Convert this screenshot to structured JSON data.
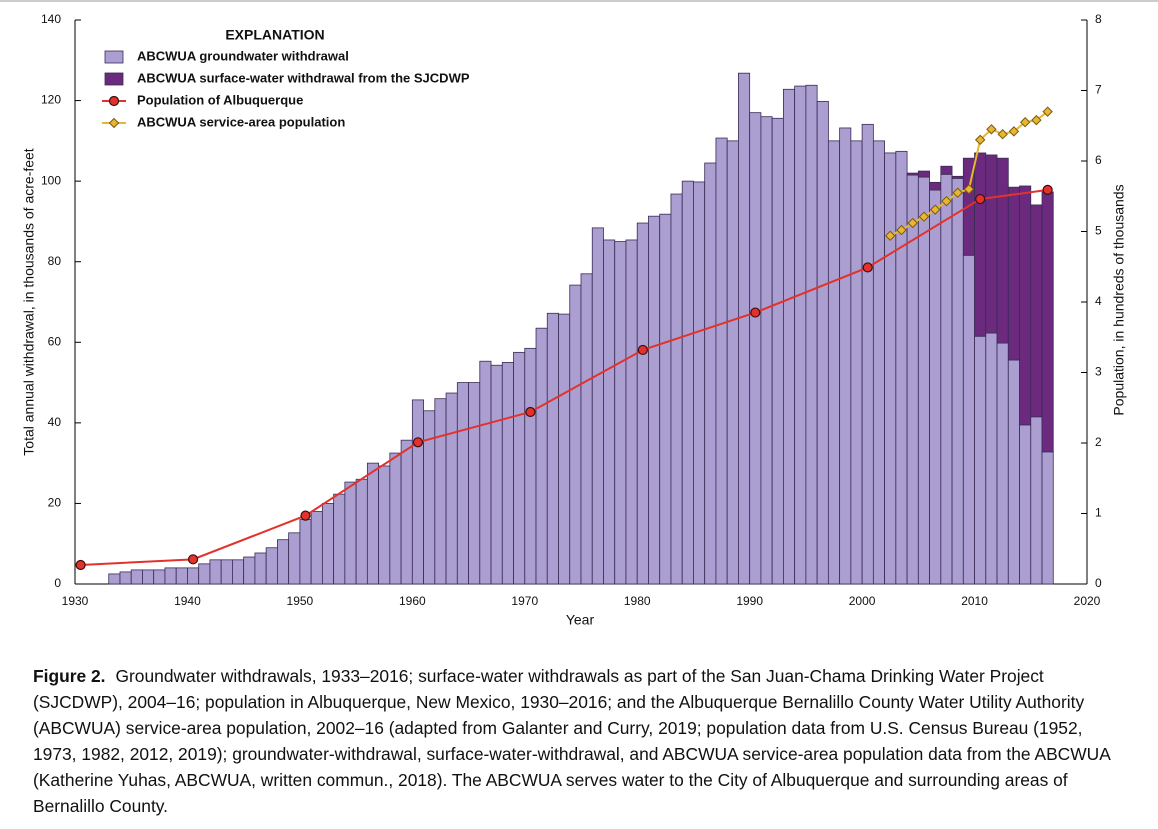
{
  "chart_data": {
    "type": "bar",
    "stacked": true,
    "legend_title": "EXPLANATION",
    "xlabel": "Year",
    "ylabel": "Total annual withdrawal, in thousands of acre-feet",
    "y2label": "Population, in hundreds of thousands",
    "xlim": [
      1930,
      2020
    ],
    "xticks": [
      1930,
      1940,
      1950,
      1960,
      1970,
      1980,
      1990,
      2000,
      2010,
      2020
    ],
    "ylim": [
      0,
      140
    ],
    "yticks": [
      0,
      20,
      40,
      60,
      80,
      100,
      120,
      140
    ],
    "y2lim": [
      0,
      8
    ],
    "y2ticks": [
      0,
      1,
      2,
      3,
      4,
      5,
      6,
      7,
      8
    ],
    "x": [
      1933,
      1934,
      1935,
      1936,
      1937,
      1938,
      1939,
      1940,
      1941,
      1942,
      1943,
      1944,
      1945,
      1946,
      1947,
      1948,
      1949,
      1950,
      1951,
      1952,
      1953,
      1954,
      1955,
      1956,
      1957,
      1958,
      1959,
      1960,
      1961,
      1962,
      1963,
      1964,
      1965,
      1966,
      1967,
      1968,
      1969,
      1970,
      1971,
      1972,
      1973,
      1974,
      1975,
      1976,
      1977,
      1978,
      1979,
      1980,
      1981,
      1982,
      1983,
      1984,
      1985,
      1986,
      1987,
      1988,
      1989,
      1990,
      1991,
      1992,
      1993,
      1994,
      1995,
      1996,
      1997,
      1998,
      1999,
      2000,
      2001,
      2002,
      2003,
      2004,
      2005,
      2006,
      2007,
      2008,
      2009,
      2010,
      2011,
      2012,
      2013,
      2014,
      2015,
      2016
    ],
    "series": [
      {
        "name": "ABCWUA groundwater withdrawal",
        "color": "#ab9fd1",
        "values": [
          2.5,
          3,
          3.5,
          3.5,
          3.5,
          4,
          4,
          4,
          5,
          6,
          6,
          6,
          6.7,
          7.7,
          9,
          11,
          12.7,
          16,
          18,
          20,
          22.3,
          25.3,
          26,
          30,
          29.3,
          32.5,
          35.7,
          45.7,
          43,
          46,
          47.4,
          50,
          50,
          55.3,
          54.3,
          55,
          57.5,
          58.5,
          63.5,
          67.2,
          67,
          74.2,
          77,
          88.4,
          85.4,
          85,
          85.4,
          89.6,
          91.3,
          91.8,
          96.8,
          100,
          99.8,
          104.5,
          110.7,
          110,
          126.8,
          117,
          116,
          115.6,
          122.8,
          123.6,
          123.8,
          119.8,
          110,
          113.2,
          110,
          114.1,
          110,
          107,
          107.4,
          101.5,
          101,
          97.8,
          101.7,
          100.7,
          81.6,
          61.5,
          62.3,
          59.8,
          55.6,
          39.5,
          41.5,
          32.8
        ]
      },
      {
        "name": "ABCWUA surface-water withdrawal from the SJCDWP",
        "color": "#6b2a7e",
        "values": [
          null,
          null,
          null,
          null,
          null,
          null,
          null,
          null,
          null,
          null,
          null,
          null,
          null,
          null,
          null,
          null,
          null,
          null,
          null,
          null,
          null,
          null,
          null,
          null,
          null,
          null,
          null,
          null,
          null,
          null,
          null,
          null,
          null,
          null,
          null,
          null,
          null,
          null,
          null,
          null,
          null,
          null,
          null,
          null,
          null,
          null,
          null,
          null,
          null,
          null,
          null,
          null,
          null,
          null,
          null,
          null,
          null,
          null,
          null,
          null,
          null,
          null,
          null,
          null,
          null,
          null,
          null,
          null,
          null,
          null,
          null,
          0.5,
          1.5,
          1.9,
          2,
          0.5,
          24.1,
          45.5,
          44.2,
          45.9,
          42.9,
          59.3,
          52.6,
          64.5
        ]
      },
      {
        "name": "Population of Albuquerque",
        "type": "line",
        "axis": "y2",
        "color": "#e2322b",
        "marker": "circle",
        "x": [
          1930,
          1940,
          1950,
          1960,
          1970,
          1980,
          1990,
          2000,
          2010,
          2016
        ],
        "values": [
          0.27,
          0.35,
          0.97,
          2.01,
          2.44,
          3.32,
          3.85,
          4.49,
          5.46,
          5.59
        ]
      },
      {
        "name": "ABCWUA service-area population",
        "type": "line",
        "axis": "y2",
        "color": "#e8b631",
        "marker": "diamond",
        "x": [
          2002,
          2003,
          2004,
          2005,
          2006,
          2007,
          2008,
          2009,
          2010,
          2011,
          2012,
          2013,
          2014,
          2015,
          2016
        ],
        "values": [
          4.94,
          5.02,
          5.12,
          5.21,
          5.31,
          5.43,
          5.55,
          5.6,
          6.3,
          6.45,
          6.38,
          6.42,
          6.55,
          6.58,
          6.7
        ]
      }
    ]
  },
  "caption": {
    "label": "Figure 2.",
    "text": "Groundwater withdrawals, 1933–2016; surface-water withdrawals as part of the San Juan-Chama Drinking Water Project (SJCDWP), 2004–16; population in Albuquerque, New Mexico, 1930–2016; and the Albuquerque Bernalillo County Water Utility Authority (ABCWUA) service-area population, 2002–16 (adapted from Galanter and Curry, 2019; population data from U.S. Census Bureau (1952, 1973, 1982, 2012, 2019); groundwater-withdrawal, surface-water-withdrawal, and ABCWUA service-area population data from the ABCWUA (Katherine Yuhas, ABCWUA, written commun., 2018). The ABCWUA serves water to the City of Albuquerque and surrounding areas of Bernalillo County."
  }
}
